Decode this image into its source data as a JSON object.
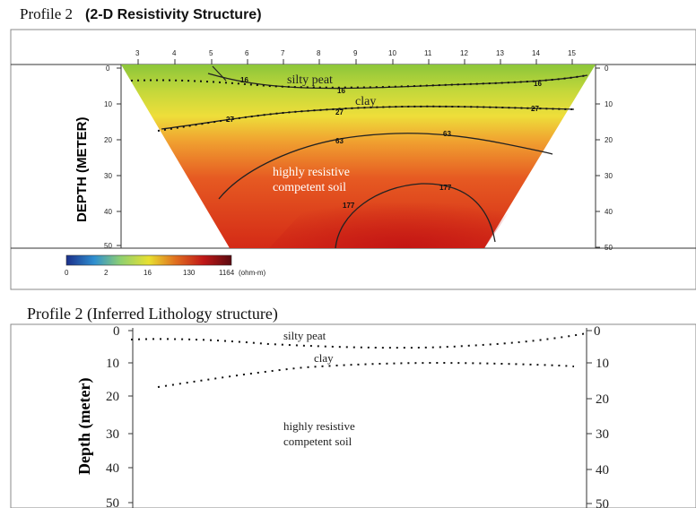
{
  "profile_top": {
    "title_main": "Profile 2",
    "title_sub": "(2-D Resistivity Structure)",
    "y_axis_label": "DEPTH (METER)",
    "x_ticks": [
      "3",
      "4",
      "5",
      "6",
      "7",
      "8",
      "9",
      "10",
      "11",
      "12",
      "13",
      "14",
      "15"
    ],
    "y_ticks": [
      "0",
      "10",
      "20",
      "30",
      "40",
      "50"
    ],
    "right_ticks": [
      "0",
      "10",
      "20",
      "30",
      "40",
      "50"
    ],
    "layer_labels": {
      "silty_peat": "silty peat",
      "clay": "clay",
      "resistive_line1": "highly resistive",
      "resistive_line2": "competent soil"
    },
    "contour_labels": [
      "16",
      "16",
      "16",
      "27",
      "27",
      "27",
      "63",
      "63",
      "177",
      "177"
    ],
    "colorbar": {
      "ticks": [
        "0",
        "2",
        "16",
        "130",
        "1164"
      ],
      "unit": "(ohm-m)",
      "colors": [
        "#1b2f8a",
        "#2f8fd0",
        "#8fd070",
        "#e8e030",
        "#e07020",
        "#c01818",
        "#5a0a10"
      ]
    }
  },
  "profile_bottom": {
    "title": "Profile 2  (Inferred Lithology structure)",
    "y_axis_label": "Depth (meter)",
    "y_ticks": [
      "0",
      "10",
      "20",
      "30",
      "40",
      "50"
    ],
    "right_ticks": [
      "0",
      "10",
      "20",
      "30",
      "40",
      "50"
    ],
    "labels": {
      "silty_peat": "silty peat",
      "clay": "clay",
      "resistive_line1": "highly resistive",
      "resistive_line2": "competent soil"
    }
  }
}
